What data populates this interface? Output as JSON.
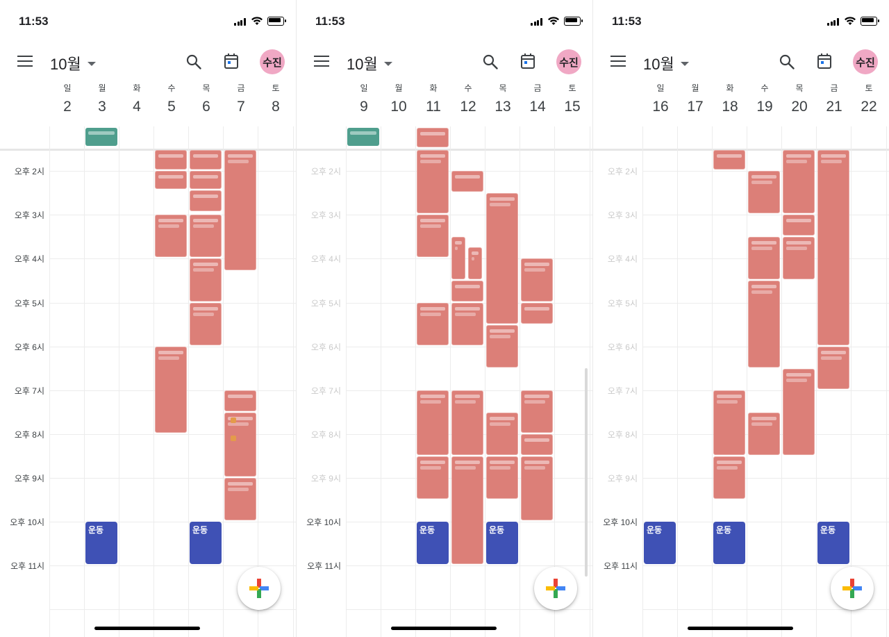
{
  "status": {
    "time": "11:53"
  },
  "header": {
    "month": "10월",
    "avatar": "수진"
  },
  "weekday_names": [
    "일",
    "월",
    "화",
    "수",
    "목",
    "금",
    "토"
  ],
  "hour_labels": [
    "오후 2시",
    "오후 3시",
    "오후 4시",
    "오후 5시",
    "오후 6시",
    "오후 7시",
    "오후 8시",
    "오후 9시",
    "오후 10시",
    "오후 11시"
  ],
  "event_label": "운동",
  "colors": {
    "event_red": "#dc7f78",
    "event_blue": "#3f51b5",
    "event_green": "#4f9e8d",
    "avatar": "#f0a8c4"
  },
  "icons": [
    "menu-icon",
    "search-icon",
    "today-icon",
    "add-icon"
  ],
  "screens": [
    {
      "dates": [
        "2",
        "3",
        "4",
        "5",
        "6",
        "7",
        "8"
      ]
    },
    {
      "dates": [
        "9",
        "10",
        "11",
        "12",
        "13",
        "14",
        "15"
      ]
    },
    {
      "dates": [
        "16",
        "17",
        "18",
        "19",
        "20",
        "21",
        "22"
      ]
    }
  ]
}
